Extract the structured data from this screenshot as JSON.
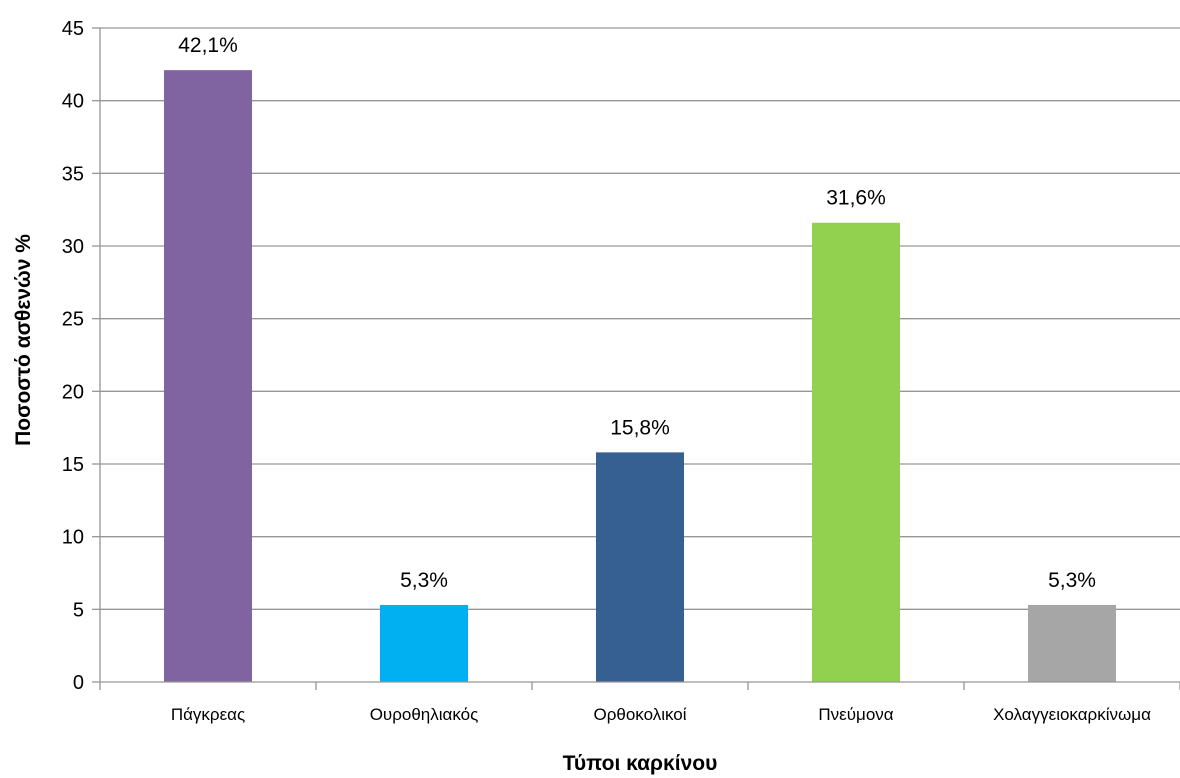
{
  "chart_data": {
    "type": "bar",
    "title": "",
    "xlabel": "Τύποι καρκίνου",
    "ylabel": "Ποσοστό  ασθενών %",
    "ylim": [
      0,
      45
    ],
    "yticks": [
      0,
      5,
      10,
      15,
      20,
      25,
      30,
      35,
      40,
      45
    ],
    "grid": true,
    "legend": "none",
    "categories": [
      "Πάγκρεας",
      "Ουροθηλιακός",
      "Ορθοκολικοί",
      "Πνεύμονα",
      "Χολαγγειοκαρκίνωμα"
    ],
    "values": [
      42.1,
      5.3,
      15.8,
      31.6,
      5.3
    ],
    "data_labels": [
      "42,1%",
      "5,3%",
      "15,8%",
      "31,6%",
      "5,3%"
    ],
    "colors": [
      "#8064a2",
      "#00b0f0",
      "#376092",
      "#92d050",
      "#a6a6a6"
    ]
  }
}
